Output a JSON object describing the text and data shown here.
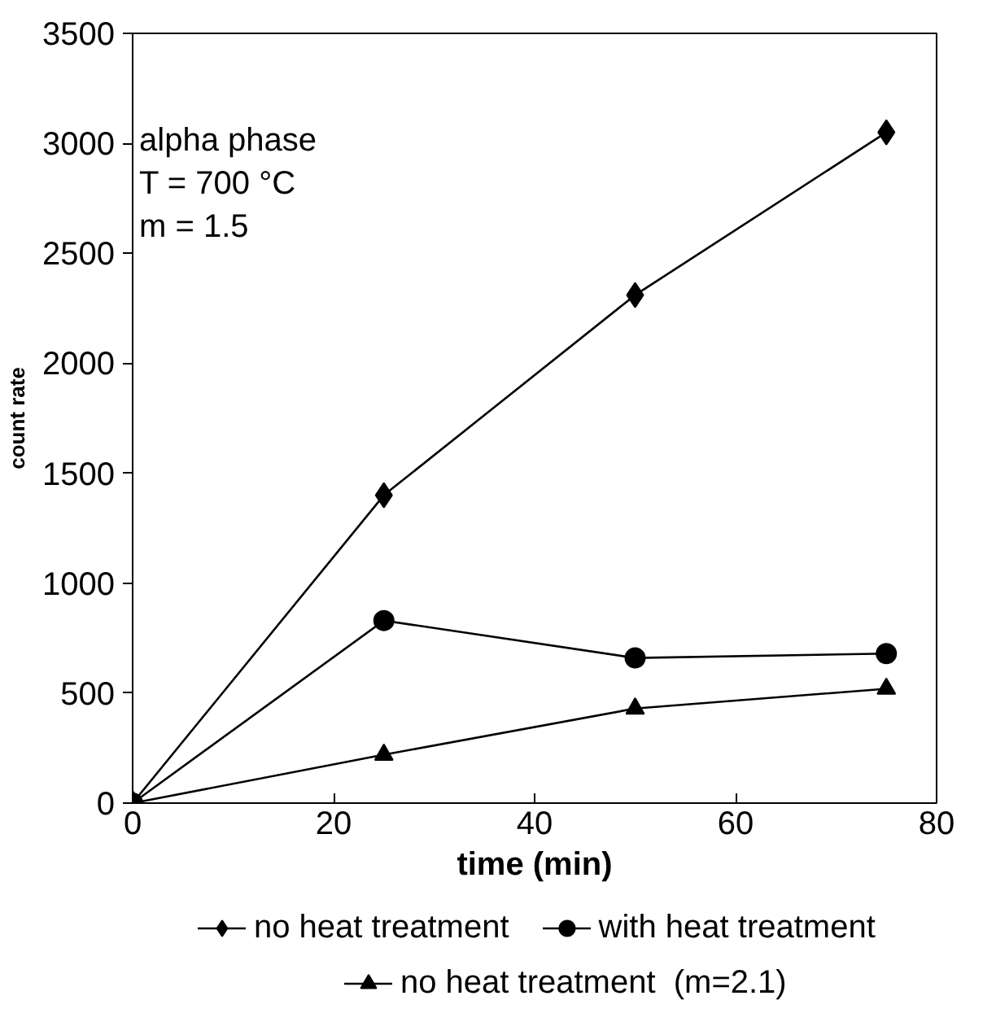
{
  "chart_data": {
    "type": "line",
    "xlabel": "time (min)",
    "ylabel": "count rate",
    "x": [
      0,
      25,
      50,
      75
    ],
    "series": [
      {
        "name": "no heat treatment",
        "color": "#000000",
        "marker": "diamond",
        "values": [
          0,
          1400,
          2310,
          3050
        ]
      },
      {
        "name": "with heat treatment",
        "color": "#000000",
        "marker": "circle",
        "values": [
          0,
          830,
          660,
          680
        ]
      },
      {
        "name": "no heat treatment  (m=2.1)",
        "color": "#000000",
        "marker": "triangle",
        "values": [
          0,
          220,
          430,
          520
        ]
      }
    ],
    "xlim": [
      0,
      80
    ],
    "xticks": [
      0,
      20,
      40,
      60,
      80
    ],
    "ylim": [
      0,
      3500
    ],
    "yticks": [
      0,
      500,
      1000,
      1500,
      2000,
      2500,
      3000,
      3500
    ],
    "annotations": [
      "alpha phase\nT = 700 °C\nm = 1.5"
    ],
    "grid": false,
    "legend": "bottom",
    "line_style": "solid"
  }
}
